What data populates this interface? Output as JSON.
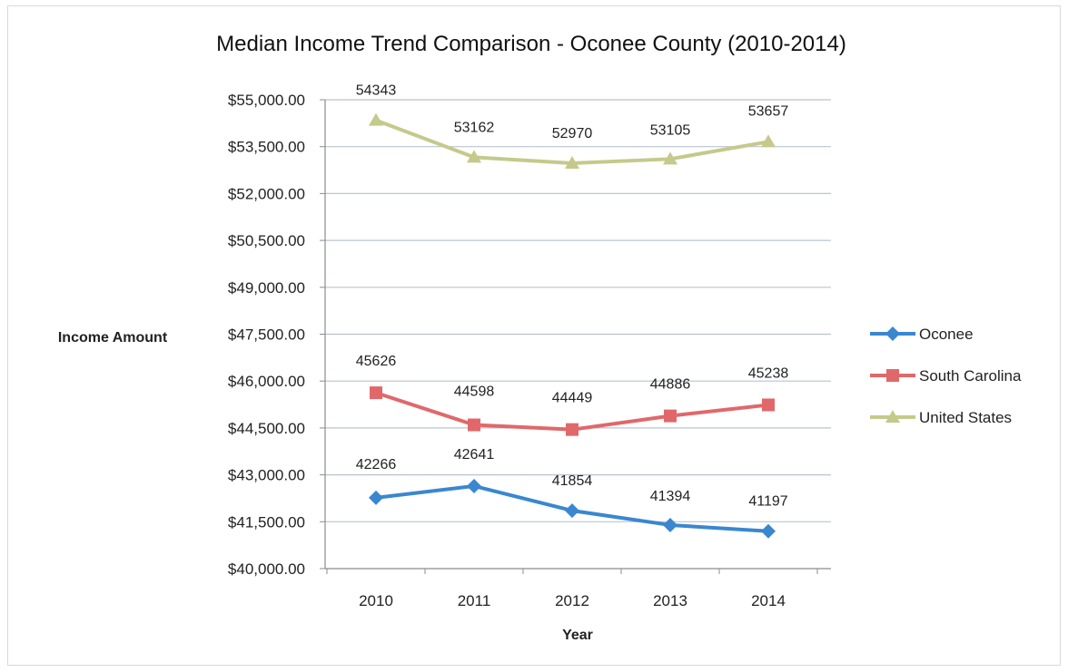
{
  "chart_data": {
    "type": "line",
    "title": "Median Income Trend Comparison - Oconee County (2010-2014)",
    "xlabel": "Year",
    "ylabel": "Income Amount",
    "categories": [
      "2010",
      "2011",
      "2012",
      "2013",
      "2014"
    ],
    "ylim": [
      40000,
      55000
    ],
    "yticks": [
      40000,
      41500,
      43000,
      44500,
      46000,
      47500,
      49000,
      50500,
      52000,
      53500,
      55000
    ],
    "ytick_labels": [
      "$40,000.00",
      "$41,500.00",
      "$43,000.00",
      "$44,500.00",
      "$46,000.00",
      "$47,500.00",
      "$49,000.00",
      "$50,500.00",
      "$52,000.00",
      "$53,500.00",
      "$55,000.00"
    ],
    "grid": true,
    "legend_position": "right",
    "series": [
      {
        "name": "Oconee",
        "values": [
          42266,
          42641,
          41854,
          41394,
          41197
        ],
        "labels": [
          "42266",
          "42641",
          "41854",
          "41394",
          "41197"
        ],
        "color": "#3a87d0",
        "marker": "diamond"
      },
      {
        "name": "South Carolina",
        "values": [
          45626,
          44598,
          44449,
          44886,
          45238
        ],
        "labels": [
          "45626",
          "44598",
          "44449",
          "44886",
          "45238"
        ],
        "color": "#e0686b",
        "marker": "square"
      },
      {
        "name": "United States",
        "values": [
          54343,
          53162,
          52970,
          53105,
          53657
        ],
        "labels": [
          "54343",
          "53162",
          "52970",
          "53105",
          "53657"
        ],
        "color": "#c5c98b",
        "marker": "triangle"
      }
    ]
  }
}
